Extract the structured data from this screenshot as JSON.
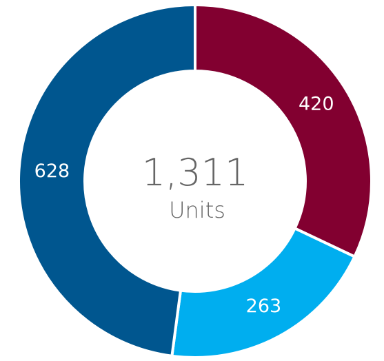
{
  "chart_data": {
    "type": "donut",
    "values": [
      420,
      263,
      628
    ],
    "colors": [
      "#820030",
      "#00aeef",
      "#00568f"
    ],
    "center_text": "1,311",
    "center_subtitle": "Units"
  }
}
